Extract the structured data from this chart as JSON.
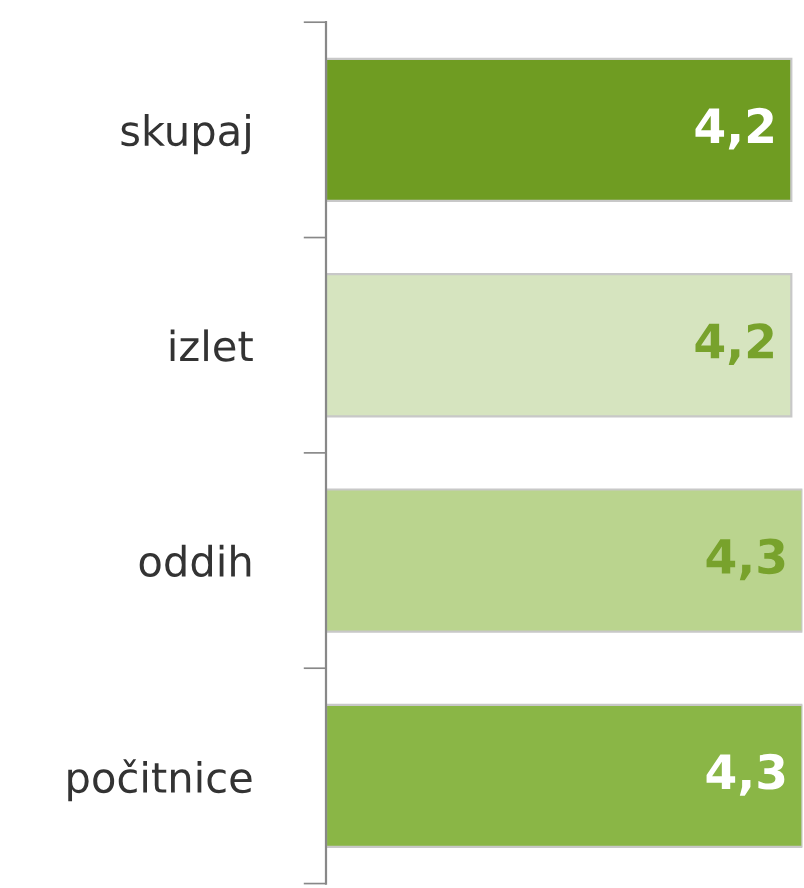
{
  "chart_data": {
    "type": "bar",
    "orientation": "horizontal",
    "categories": [
      "skupaj",
      "izlet",
      "oddih",
      "počitnice"
    ],
    "values": [
      4.2,
      4.2,
      4.3,
      4.3
    ],
    "colors": [
      "#6f9c22",
      "#d6e4bf",
      "#bad48e",
      "#8ab646"
    ],
    "value_labels": [
      "4,2",
      "4,2",
      "4,3",
      "4,3"
    ],
    "xlim": [
      0,
      4.3
    ],
    "grid": false,
    "legend": false
  }
}
